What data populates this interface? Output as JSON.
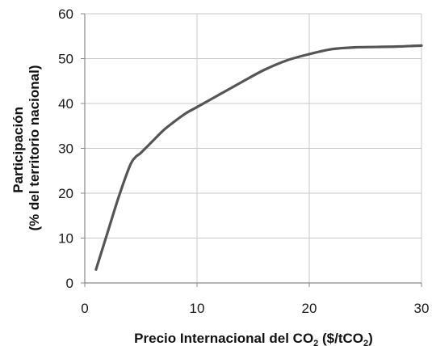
{
  "chart_data": {
    "type": "line",
    "xlabel": {
      "prefix": "Precio Internacional del CO",
      "sub1": "2",
      "mid": " ($/tCO",
      "sub2": "2",
      "suffix": ")"
    },
    "ylabel": {
      "line1": "Participación",
      "line2": "(% del territorio nacional)"
    },
    "xlim": [
      0,
      30
    ],
    "ylim": [
      0,
      60
    ],
    "xticks": [
      0,
      10,
      20,
      30
    ],
    "yticks": [
      0,
      10,
      20,
      30,
      40,
      50,
      60
    ],
    "grid": true,
    "colors": {
      "line": "#555555",
      "grid": "#c8c8c8",
      "axis": "#8a8a8a"
    },
    "series": [
      {
        "x": [
          1,
          2,
          3,
          4,
          4.5,
          5,
          6,
          7,
          8,
          9,
          10,
          12,
          14,
          16,
          18,
          20,
          22,
          24,
          26,
          28,
          30
        ],
        "values": [
          3,
          11,
          19,
          26,
          28,
          29,
          31.5,
          34,
          36,
          37.8,
          39.2,
          42,
          44.8,
          47.5,
          49.6,
          51,
          52.1,
          52.5,
          52.6,
          52.7,
          52.9
        ]
      }
    ]
  }
}
